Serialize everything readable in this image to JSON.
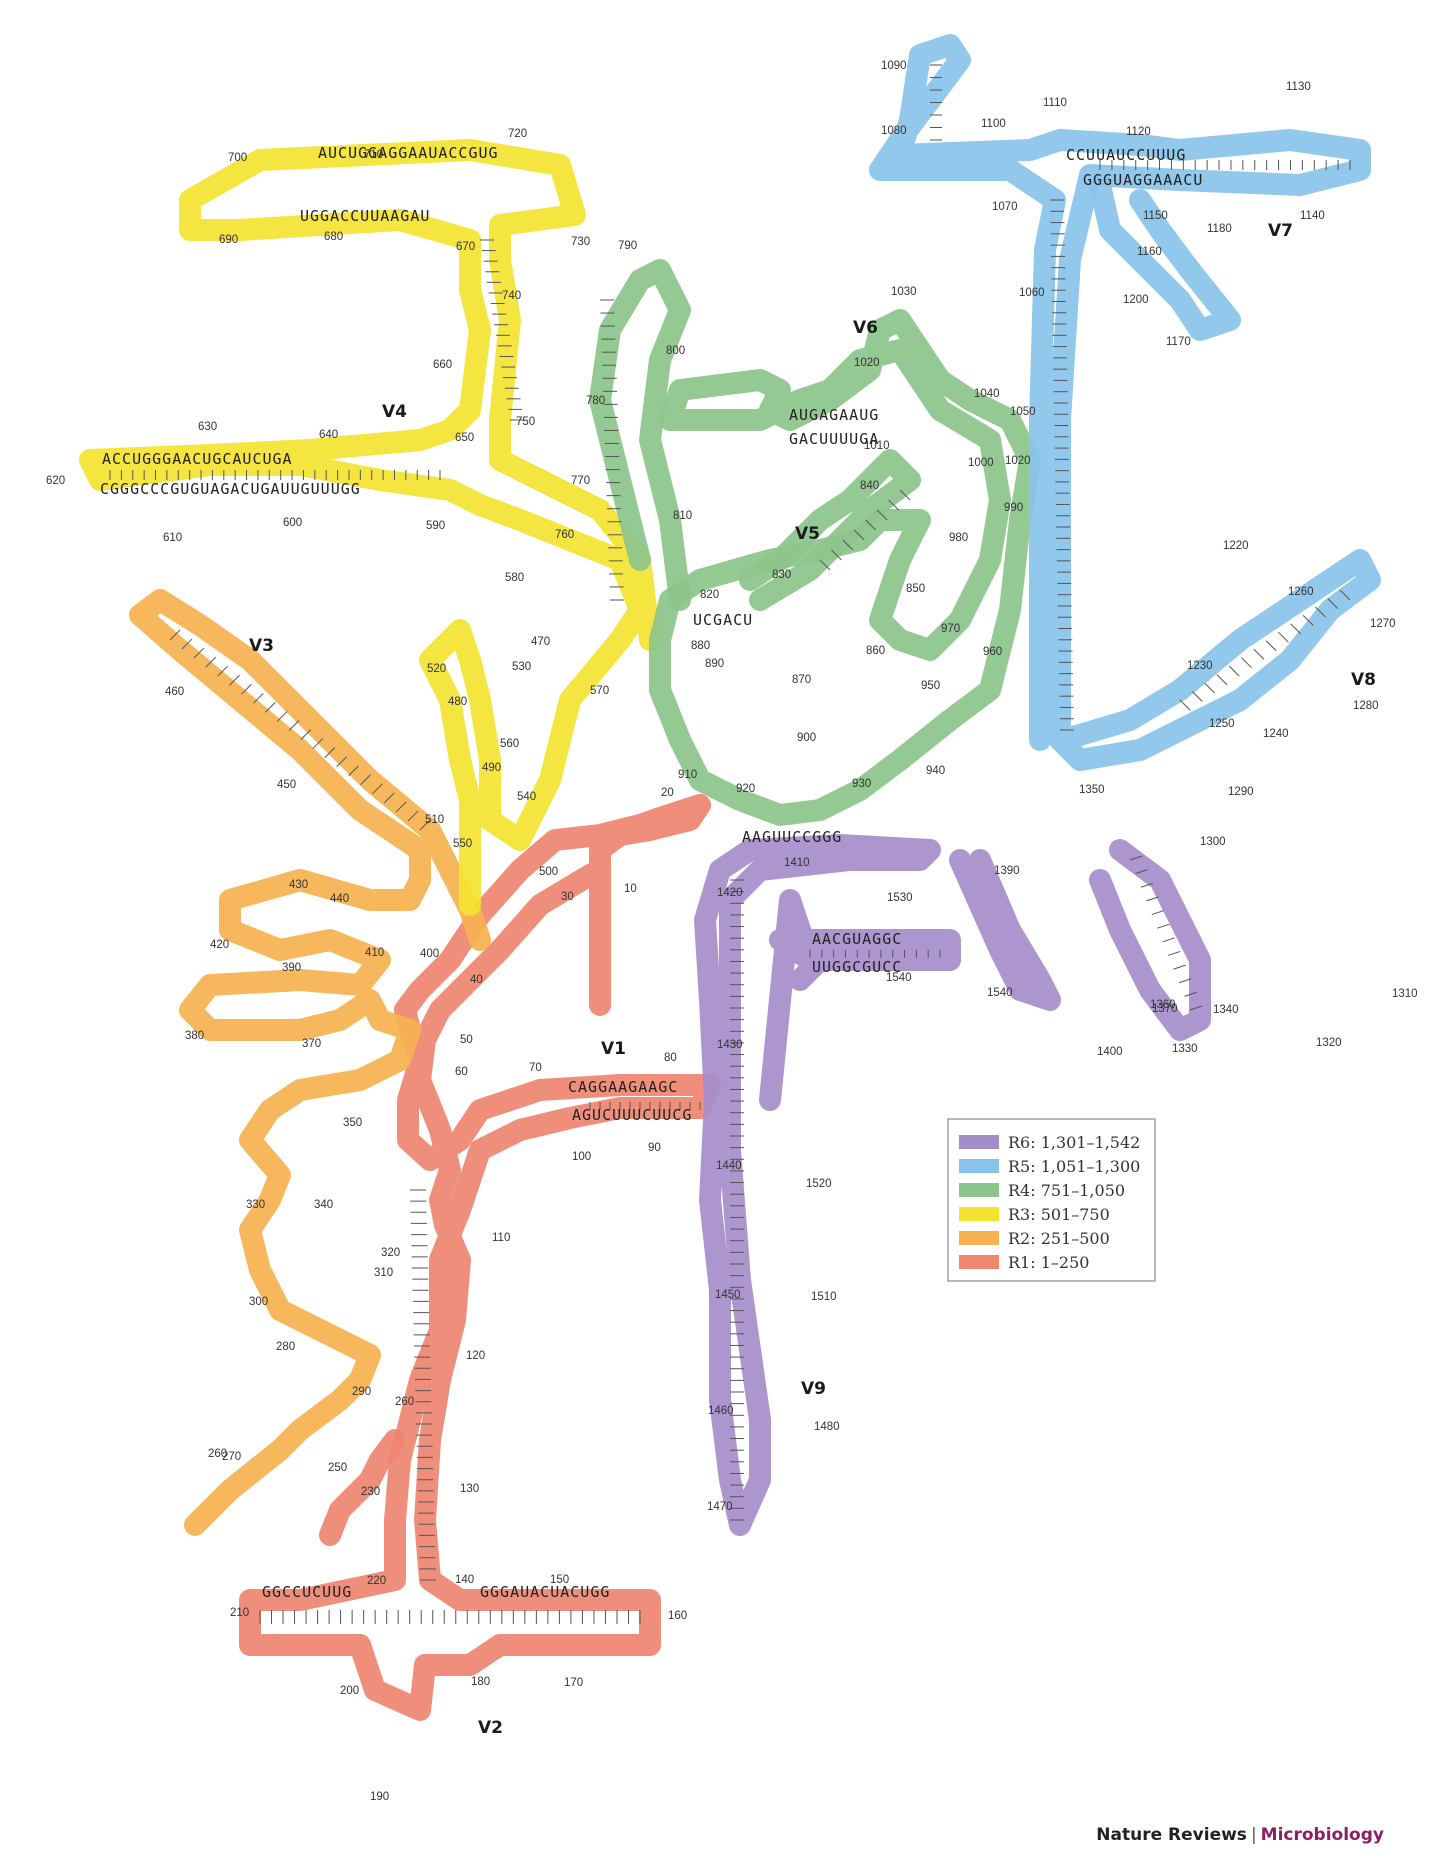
{
  "colors": {
    "R1": "#ee8670",
    "R2": "#f6b24f",
    "R3": "#f4e330",
    "R4": "#8cc48b",
    "R5": "#88c3ea",
    "R6": "#a58dc9"
  },
  "legend": [
    {
      "key": "R6",
      "label": "R6: 1,301–1,542"
    },
    {
      "key": "R5",
      "label": "R5: 1,051–1,300"
    },
    {
      "key": "R4",
      "label": "R4: 751–1,050"
    },
    {
      "key": "R3",
      "label": "R3: 501–750"
    },
    {
      "key": "R2",
      "label": "R2: 251–500"
    },
    {
      "key": "R1",
      "label": "R1: 1–250"
    }
  ],
  "variable_regions": [
    "V1",
    "V2",
    "V3",
    "V4",
    "V5",
    "V6",
    "V7",
    "V8",
    "V9"
  ],
  "position_labels": [
    "10",
    "20",
    "30",
    "40",
    "50",
    "60",
    "70",
    "80",
    "90",
    "100",
    "110",
    "120",
    "130",
    "140",
    "150",
    "160",
    "170",
    "180",
    "190",
    "200",
    "210",
    "220",
    "230",
    "250",
    "260",
    "260",
    "270",
    "280",
    "290",
    "300",
    "310",
    "320",
    "330",
    "340",
    "350",
    "370",
    "380",
    "390",
    "400",
    "410",
    "420",
    "430",
    "440",
    "450",
    "460",
    "470",
    "480",
    "490",
    "500",
    "510",
    "520",
    "530",
    "540",
    "550",
    "560",
    "570",
    "580",
    "590",
    "600",
    "610",
    "620",
    "630",
    "640",
    "650",
    "660",
    "670",
    "680",
    "690",
    "700",
    "710",
    "720",
    "730",
    "740",
    "750",
    "760",
    "770",
    "780",
    "790",
    "800",
    "810",
    "820",
    "830",
    "840",
    "850",
    "860",
    "870",
    "880",
    "890",
    "900",
    "910",
    "920",
    "930",
    "940",
    "950",
    "960",
    "970",
    "980",
    "990",
    "1000",
    "1010",
    "1020",
    "1020",
    "1030",
    "1040",
    "1050",
    "1060",
    "1070",
    "1080",
    "1090",
    "1100",
    "1110",
    "1120",
    "1130",
    "1140",
    "1150",
    "1160",
    "1170",
    "1180",
    "1200",
    "1220",
    "1230",
    "1240",
    "1250",
    "1260",
    "1270",
    "1280",
    "1290",
    "1300",
    "1310",
    "1320",
    "1330",
    "1340",
    "1350",
    "1360",
    "1370",
    "1390",
    "1400",
    "1410",
    "1420",
    "1430",
    "1440",
    "1450",
    "1460",
    "1470",
    "1480",
    "1510",
    "1520",
    "1530",
    "1540",
    "1540"
  ],
  "sequence_fragments": {
    "v4_top": "AUCUGGAGGAAUACCGUG",
    "v4_top_lower": "UGGACCUUAAGAU",
    "v4_left_top": "ACCUGGGAACUGCAUCUGA",
    "v4_left_bottom": "CGGGCCCGUGUAGACUGAUUGUUUGG",
    "v1_upper": "CAGGAAGAAGC",
    "v1_lower": "AGUCUUUCUUCG",
    "v2_upper": "GGGAUACUACUGG",
    "v2_lower": "GGCCUCUUG",
    "v9_stem": "AAGUUCCGGG",
    "v7_upper": "CCUUAUCCUUUG",
    "v7_lower": "GGGUAGGAAACU",
    "v6_upper": "AUGAGAAUG",
    "v6_lower": "GACUUUUGA",
    "v5_stem": "UCGACU",
    "helix_1500": "AACGUAGGC",
    "helix_1520": "UUGGCGUCC"
  },
  "footer": {
    "publisher": "Nature Reviews",
    "separator": "|",
    "journal": "Microbiology"
  }
}
